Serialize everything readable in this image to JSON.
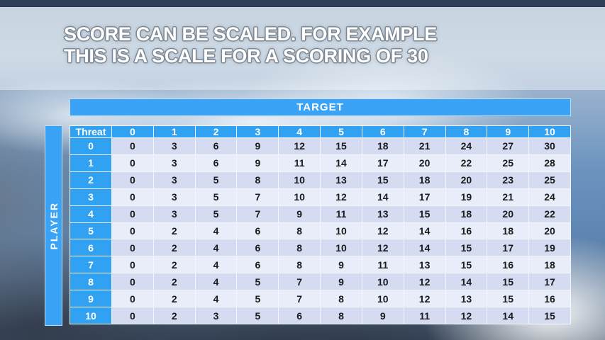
{
  "title": {
    "line1": "SCORE CAN BE SCALED. FOR EXAMPLE",
    "line2": "THIS IS A SCALE FOR A SCORING OF 30"
  },
  "table": {
    "target_label": "TARGET",
    "player_label": "PLAYER",
    "corner_label": "Threat",
    "column_headers": [
      "0",
      "1",
      "2",
      "3",
      "4",
      "5",
      "6",
      "7",
      "8",
      "9",
      "10"
    ],
    "row_headers": [
      "0",
      "1",
      "2",
      "3",
      "4",
      "5",
      "6",
      "7",
      "8",
      "9",
      "10"
    ],
    "rows": [
      [
        0,
        3,
        6,
        9,
        12,
        15,
        18,
        21,
        24,
        27,
        30
      ],
      [
        0,
        3,
        6,
        9,
        11,
        14,
        17,
        20,
        22,
        25,
        28
      ],
      [
        0,
        3,
        5,
        8,
        10,
        13,
        15,
        18,
        20,
        23,
        25
      ],
      [
        0,
        3,
        5,
        7,
        10,
        12,
        14,
        17,
        19,
        21,
        24
      ],
      [
        0,
        3,
        5,
        7,
        9,
        11,
        13,
        15,
        18,
        20,
        22
      ],
      [
        0,
        2,
        4,
        6,
        8,
        10,
        12,
        14,
        16,
        18,
        20
      ],
      [
        0,
        2,
        4,
        6,
        8,
        10,
        12,
        14,
        15,
        17,
        19
      ],
      [
        0,
        2,
        4,
        6,
        8,
        9,
        11,
        13,
        15,
        16,
        18
      ],
      [
        0,
        2,
        4,
        5,
        7,
        9,
        10,
        12,
        14,
        15,
        17
      ],
      [
        0,
        2,
        4,
        5,
        7,
        8,
        10,
        12,
        13,
        15,
        16
      ],
      [
        0,
        2,
        3,
        5,
        6,
        8,
        9,
        11,
        12,
        14,
        15
      ]
    ]
  },
  "colors": {
    "header_blue": "#3BA3F5",
    "row_even": "#D5DBF1",
    "row_odd": "#E9EDF9",
    "top_bar": "#2B4058",
    "cell_border": "#F2F6FB"
  }
}
